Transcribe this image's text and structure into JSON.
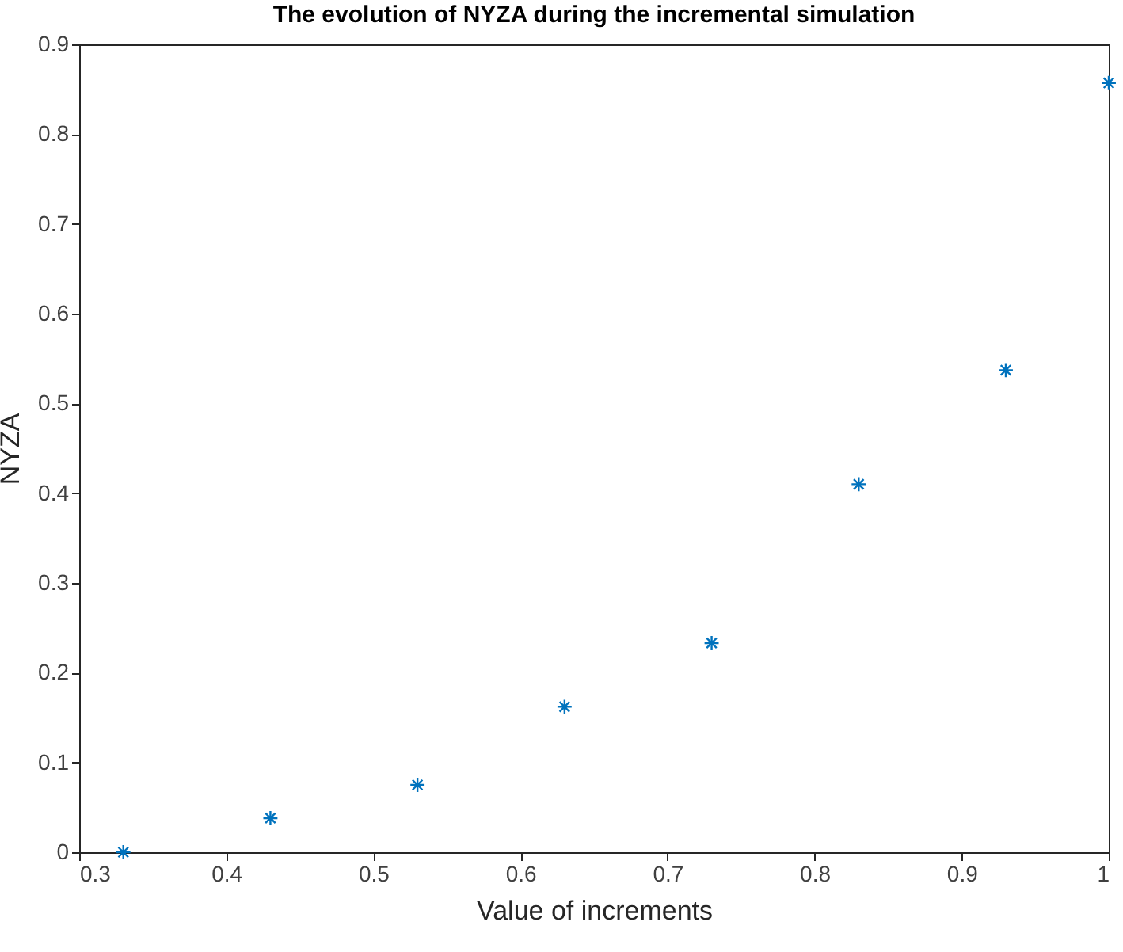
{
  "chart_data": {
    "type": "scatter",
    "title": "The evolution of NYZA during the incremental simulation",
    "xlabel": "Value of increments",
    "ylabel": "NYZA",
    "x": [
      0.33,
      0.43,
      0.53,
      0.63,
      0.73,
      0.83,
      0.93,
      1.0
    ],
    "series": [
      {
        "color": "#0072bd",
        "values": [
          0,
          0.038,
          0.075,
          0.162,
          0.233,
          0.41,
          0.537,
          0.857
        ]
      }
    ],
    "xlim": [
      0.3,
      1
    ],
    "xticks": [
      0.3,
      0.4,
      0.5,
      0.6,
      0.7,
      0.8,
      0.9,
      1
    ],
    "ylim": [
      0,
      0.9
    ],
    "yticks": [
      0,
      0.1,
      0.2,
      0.3,
      0.4,
      0.5,
      0.6,
      0.7,
      0.8,
      0.9
    ],
    "grid": false,
    "marker": "cross"
  }
}
